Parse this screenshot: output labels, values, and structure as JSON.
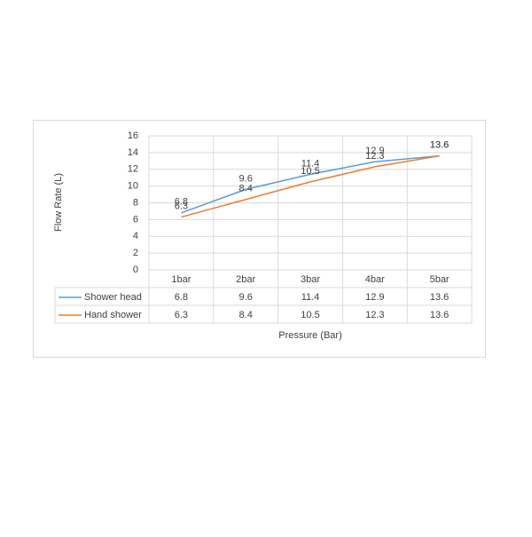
{
  "chart_data": {
    "type": "line",
    "x_title": "Pressure (Bar)",
    "y_title": "Flow Rate (L)",
    "categories": [
      "1bar",
      "2bar",
      "3bar",
      "4bar",
      "5bar"
    ],
    "series": [
      {
        "name": "Shower head",
        "color": "#5b9bd5",
        "values": [
          6.8,
          9.6,
          11.4,
          12.9,
          13.6
        ]
      },
      {
        "name": "Hand shower",
        "color": "#ed7d31",
        "values": [
          6.3,
          8.4,
          10.5,
          12.3,
          13.6
        ]
      }
    ],
    "ylim": [
      0,
      16
    ],
    "yticks": [
      0,
      2,
      4,
      6,
      8,
      10,
      12,
      14,
      16
    ],
    "grid": true,
    "data_table": true
  }
}
